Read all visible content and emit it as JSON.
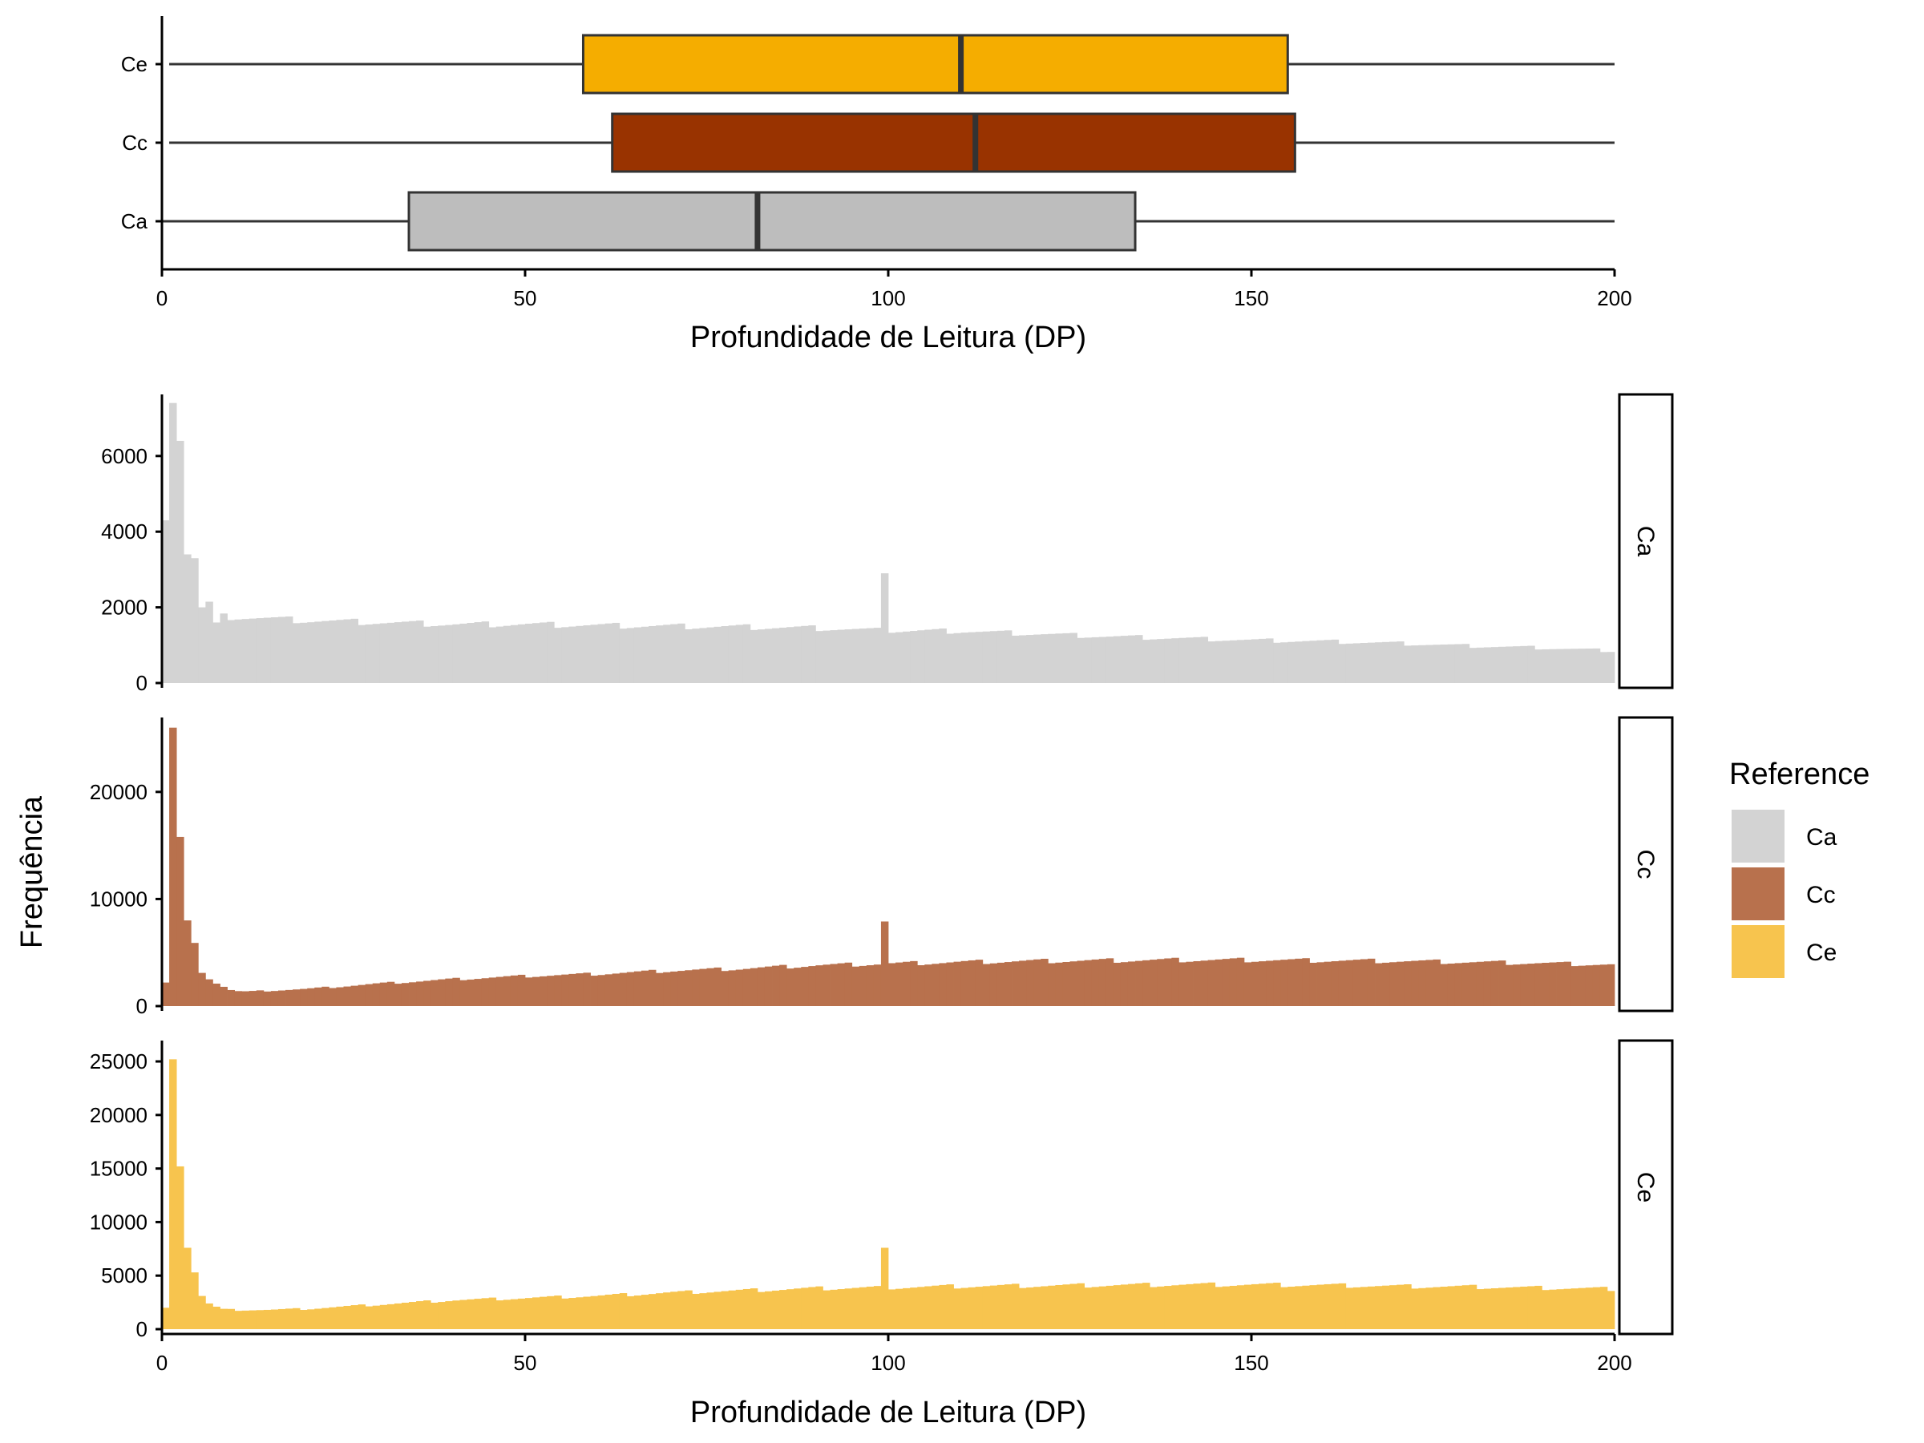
{
  "chart_data": [
    {
      "type": "box",
      "xlabel": "Profundidade de Leitura (DP)",
      "xlim": [
        0,
        200
      ],
      "x_ticks": [
        0,
        50,
        100,
        150,
        200
      ],
      "categories": [
        "Ca",
        "Cc",
        "Ce"
      ],
      "boxes": [
        {
          "name": "Ca",
          "whisker_low": 0,
          "q1": 34,
          "median": 82,
          "q3": 134,
          "whisker_high": 200,
          "color": "#bdbdbd"
        },
        {
          "name": "Cc",
          "whisker_low": 1,
          "q1": 62,
          "median": 112,
          "q3": 156,
          "whisker_high": 200,
          "color": "#993300"
        },
        {
          "name": "Ce",
          "whisker_low": 1,
          "q1": 58,
          "median": 110,
          "q3": 155,
          "whisker_high": 200,
          "color": "#f5ad00"
        }
      ]
    },
    {
      "type": "histogram",
      "xlabel": "Profundidade de Leitura (DP)",
      "ylabel": "Frequência",
      "xlim": [
        0,
        200
      ],
      "x_ticks": [
        0,
        50,
        100,
        150,
        200
      ],
      "bin_width": 1,
      "legend": {
        "title": "Reference",
        "position": "right",
        "entries": [
          "Ca",
          "Cc",
          "Ce"
        ]
      },
      "facets": [
        {
          "name": "Ca",
          "color": "#d3d3d3",
          "ylim": [
            0,
            7500
          ],
          "y_ticks": [
            0,
            2000,
            4000,
            6000
          ],
          "bins": [
            {
              "x": 0,
              "y": 4300
            },
            {
              "x": 1,
              "y": 7400
            },
            {
              "x": 2,
              "y": 6400
            },
            {
              "x": 3,
              "y": 3400
            },
            {
              "x": 4,
              "y": 3300
            },
            {
              "x": 5,
              "y": 2000
            },
            {
              "x": 6,
              "y": 2150
            },
            {
              "x": 7,
              "y": 1600
            }
          ],
          "baseline_points": [
            {
              "x": 10,
              "y": 1750
            },
            {
              "x": 20,
              "y": 1650
            },
            {
              "x": 30,
              "y": 1600
            },
            {
              "x": 40,
              "y": 1550
            },
            {
              "x": 50,
              "y": 1550
            },
            {
              "x": 60,
              "y": 1520
            },
            {
              "x": 70,
              "y": 1500
            },
            {
              "x": 80,
              "y": 1480
            },
            {
              "x": 90,
              "y": 1450
            },
            {
              "x": 100,
              "y": 1380
            },
            {
              "x": 110,
              "y": 1370
            },
            {
              "x": 120,
              "y": 1300
            },
            {
              "x": 130,
              "y": 1230
            },
            {
              "x": 140,
              "y": 1180
            },
            {
              "x": 150,
              "y": 1130
            },
            {
              "x": 160,
              "y": 1100
            },
            {
              "x": 170,
              "y": 1050
            },
            {
              "x": 180,
              "y": 980
            },
            {
              "x": 190,
              "y": 930
            },
            {
              "x": 200,
              "y": 850
            }
          ],
          "spikes": [
            {
              "x": 99,
              "y": 2900
            }
          ]
        },
        {
          "name": "Cc",
          "color": "#b8714d",
          "ylim": [
            0,
            26500
          ],
          "y_ticks": [
            0,
            10000,
            20000
          ],
          "bins": [
            {
              "x": 0,
              "y": 2200
            },
            {
              "x": 1,
              "y": 26000
            },
            {
              "x": 2,
              "y": 15800
            },
            {
              "x": 3,
              "y": 8000
            },
            {
              "x": 4,
              "y": 5900
            },
            {
              "x": 5,
              "y": 3100
            },
            {
              "x": 6,
              "y": 2500
            },
            {
              "x": 7,
              "y": 2100
            },
            {
              "x": 8,
              "y": 1800
            },
            {
              "x": 9,
              "y": 1500
            },
            {
              "x": 10,
              "y": 1400
            }
          ],
          "baseline_points": [
            {
              "x": 12,
              "y": 1350
            },
            {
              "x": 15,
              "y": 1450
            },
            {
              "x": 20,
              "y": 1600
            },
            {
              "x": 30,
              "y": 2100
            },
            {
              "x": 40,
              "y": 2500
            },
            {
              "x": 50,
              "y": 2800
            },
            {
              "x": 60,
              "y": 3000
            },
            {
              "x": 70,
              "y": 3300
            },
            {
              "x": 80,
              "y": 3500
            },
            {
              "x": 90,
              "y": 3800
            },
            {
              "x": 100,
              "y": 3950
            },
            {
              "x": 110,
              "y": 4100
            },
            {
              "x": 120,
              "y": 4200
            },
            {
              "x": 130,
              "y": 4250
            },
            {
              "x": 140,
              "y": 4300
            },
            {
              "x": 150,
              "y": 4300
            },
            {
              "x": 160,
              "y": 4250
            },
            {
              "x": 170,
              "y": 4200
            },
            {
              "x": 180,
              "y": 4100
            },
            {
              "x": 190,
              "y": 4000
            },
            {
              "x": 200,
              "y": 3850
            }
          ],
          "spikes": [
            {
              "x": 99,
              "y": 7900
            }
          ]
        },
        {
          "name": "Ce",
          "color": "#f7c44e",
          "ylim": [
            0,
            26500
          ],
          "y_ticks": [
            0,
            5000,
            10000,
            15000,
            20000,
            25000
          ],
          "bins": [
            {
              "x": 0,
              "y": 2000
            },
            {
              "x": 1,
              "y": 25200
            },
            {
              "x": 2,
              "y": 15200
            },
            {
              "x": 3,
              "y": 7600
            },
            {
              "x": 4,
              "y": 5300
            },
            {
              "x": 5,
              "y": 3100
            },
            {
              "x": 6,
              "y": 2400
            },
            {
              "x": 7,
              "y": 2100
            },
            {
              "x": 8,
              "y": 1900
            }
          ],
          "baseline_points": [
            {
              "x": 10,
              "y": 1800
            },
            {
              "x": 15,
              "y": 1800
            },
            {
              "x": 20,
              "y": 1900
            },
            {
              "x": 30,
              "y": 2300
            },
            {
              "x": 40,
              "y": 2700
            },
            {
              "x": 50,
              "y": 2900
            },
            {
              "x": 60,
              "y": 3100
            },
            {
              "x": 70,
              "y": 3400
            },
            {
              "x": 80,
              "y": 3600
            },
            {
              "x": 90,
              "y": 3800
            },
            {
              "x": 100,
              "y": 3900
            },
            {
              "x": 110,
              "y": 4000
            },
            {
              "x": 120,
              "y": 4050
            },
            {
              "x": 130,
              "y": 4100
            },
            {
              "x": 140,
              "y": 4150
            },
            {
              "x": 150,
              "y": 4150
            },
            {
              "x": 160,
              "y": 4100
            },
            {
              "x": 170,
              "y": 4000
            },
            {
              "x": 180,
              "y": 3950
            },
            {
              "x": 190,
              "y": 3850
            },
            {
              "x": 200,
              "y": 3750
            }
          ],
          "spikes": [
            {
              "x": 99,
              "y": 7600
            }
          ]
        }
      ]
    }
  ]
}
